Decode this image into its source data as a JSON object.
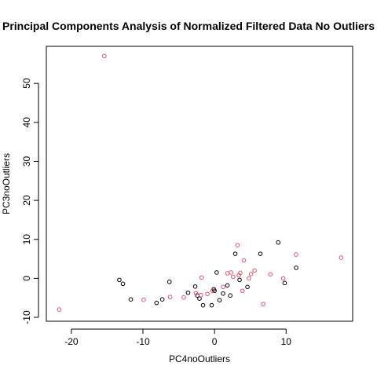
{
  "chart_data": {
    "type": "scatter",
    "title": "Principal Components Analysis of Normalized Filtered Data No Outliers",
    "xlabel": "PC4noOutliers",
    "ylabel": "PC3noOutliers",
    "xlim": [
      -23.5,
      19.3
    ],
    "ylim": [
      -11.0,
      59.5
    ],
    "x_ticks": [
      -20,
      -10,
      0,
      10
    ],
    "y_ticks": [
      -10,
      0,
      10,
      20,
      30,
      40,
      50
    ],
    "grid": false,
    "legend": "none",
    "marker": "open-circle",
    "series": [
      {
        "color": "#000000",
        "points": [
          [
            -13.3,
            -0.4
          ],
          [
            -12.8,
            -1.4
          ],
          [
            -11.7,
            -5.4
          ],
          [
            -8.1,
            -6.3
          ],
          [
            -7.3,
            -5.4
          ],
          [
            -6.3,
            -0.9
          ],
          [
            -3.7,
            -3.7
          ],
          [
            -2.7,
            -2.1
          ],
          [
            -2.4,
            -4.4
          ],
          [
            -2.1,
            -5.2
          ],
          [
            -1.6,
            -6.9
          ],
          [
            -0.4,
            -6.9
          ],
          [
            -0.1,
            -2.8
          ],
          [
            0.0,
            -3.2
          ],
          [
            0.3,
            1.5
          ],
          [
            0.7,
            -5.6
          ],
          [
            1.2,
            -3.9
          ],
          [
            1.8,
            -1.8
          ],
          [
            2.2,
            -4.4
          ],
          [
            2.9,
            6.3
          ],
          [
            3.5,
            -0.4
          ],
          [
            4.6,
            -2.2
          ],
          [
            6.4,
            6.3
          ],
          [
            8.9,
            9.2
          ],
          [
            9.8,
            -1.2
          ],
          [
            11.4,
            2.7
          ]
        ]
      },
      {
        "color": "#DF536B",
        "points": [
          [
            -21.7,
            -8.0
          ],
          [
            -15.4,
            57.0
          ],
          [
            -9.9,
            -5.5
          ],
          [
            -6.2,
            -4.8
          ],
          [
            -4.3,
            -4.9
          ],
          [
            -2.6,
            -3.8
          ],
          [
            -1.9,
            -4.3
          ],
          [
            -1.8,
            0.2
          ],
          [
            -1.0,
            -4.0
          ],
          [
            -0.3,
            -3.2
          ],
          [
            1.2,
            -2.2
          ],
          [
            1.8,
            1.3
          ],
          [
            2.3,
            1.5
          ],
          [
            2.6,
            0.4
          ],
          [
            3.2,
            8.5
          ],
          [
            3.4,
            0.8
          ],
          [
            3.6,
            1.4
          ],
          [
            3.9,
            -3.2
          ],
          [
            4.1,
            4.6
          ],
          [
            4.8,
            0.0
          ],
          [
            5.1,
            1.1
          ],
          [
            5.6,
            2.0
          ],
          [
            6.8,
            -6.6
          ],
          [
            7.8,
            1.0
          ],
          [
            9.6,
            0.0
          ],
          [
            11.4,
            6.1
          ],
          [
            17.7,
            5.3
          ]
        ]
      }
    ]
  }
}
